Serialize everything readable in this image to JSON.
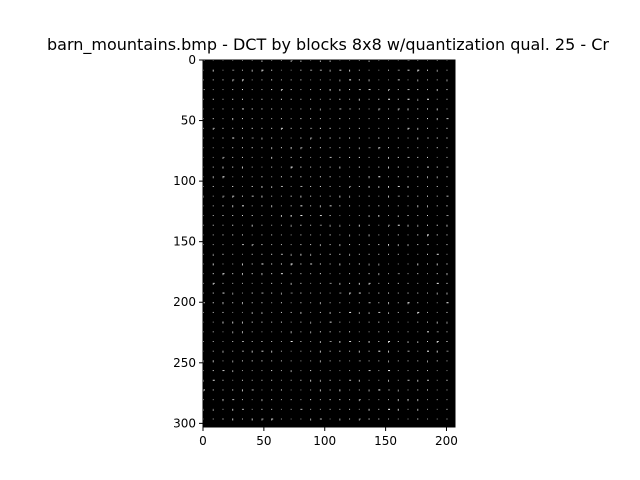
{
  "chart_data": {
    "type": "heatmap",
    "title": "barn_mountains.bmp - DCT by blocks 8x8  w/quantization qual. 25 - Cr",
    "xlabel": "",
    "ylabel": "",
    "xlim": [
      0,
      207
    ],
    "ylim": [
      303,
      0
    ],
    "x_ticks": [
      0,
      50,
      100,
      150,
      200
    ],
    "y_ticks": [
      0,
      50,
      100,
      150,
      200,
      250,
      300
    ],
    "block_size": 8,
    "colormap": "gray",
    "background_color": "#000000",
    "dot_color": "#ffffff",
    "grid": false,
    "legend": "none"
  }
}
